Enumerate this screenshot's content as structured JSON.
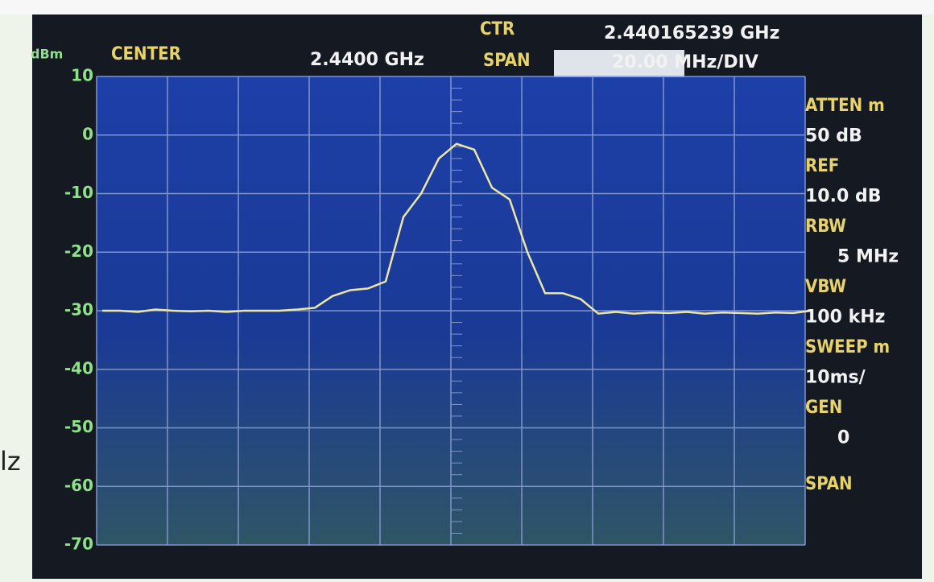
{
  "side_text": "lz",
  "chart_data": {
    "type": "line",
    "y_unit": "dBm",
    "header": {
      "center_label": "CENTER",
      "center_value": "2.4400 GHz",
      "ctr_label": "CTR",
      "ctr_value": "2.440165239 GHz",
      "span_label": "SPAN",
      "span_value": "20.00 MHz/DIV"
    },
    "side_labels": [
      "ATTEN m",
      "50 dB",
      "REF",
      "10.0 dB",
      "RBW",
      "5 MHz",
      "VBW",
      "100 kHz",
      "SWEEP m",
      "10ms/",
      "GEN",
      "0",
      "SPAN"
    ],
    "x": [
      2340,
      2345,
      2350,
      2355,
      2360,
      2365,
      2370,
      2375,
      2380,
      2385,
      2390,
      2395,
      2400,
      2405,
      2410,
      2415,
      2420,
      2425,
      2430,
      2435,
      2440,
      2445,
      2450,
      2455,
      2460,
      2465,
      2470,
      2475,
      2480,
      2485,
      2490,
      2495,
      2500,
      2505,
      2510,
      2515,
      2520,
      2525,
      2530,
      2535,
      2540
    ],
    "series": [
      {
        "name": "trace",
        "color": "#ede6a4",
        "values": [
          -30,
          -30,
          -30.2,
          -29.8,
          -30,
          -30.1,
          -30,
          -30.2,
          -30,
          -30,
          -30,
          -29.8,
          -29.5,
          -27.5,
          -26.5,
          -26.2,
          -25,
          -14,
          -10,
          -4,
          -1.5,
          -2.5,
          -9,
          -11,
          -20,
          -27,
          -27,
          -28,
          -30.5,
          -30.2,
          -30.5,
          -30.3,
          -30.4,
          -30.2,
          -30.5,
          -30.3,
          -30.4,
          -30.5,
          -30.3,
          -30.4,
          -30
        ]
      }
    ],
    "xlim": [
      2340,
      2540
    ],
    "ylim": [
      -70,
      10
    ],
    "yticks": [
      10,
      0,
      -10,
      -20,
      -30,
      -40,
      -50,
      -60,
      -70
    ],
    "grid": true
  }
}
